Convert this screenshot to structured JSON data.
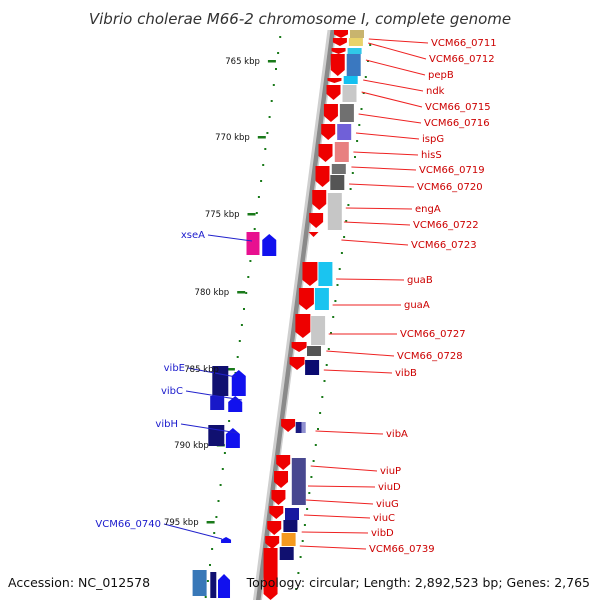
{
  "title": "Vibrio cholerae M66-2 chromosome I, complete genome",
  "footer": {
    "accession": "Accession: NC_012578",
    "topology": "Topology: circular; Length: 2,892,523 bp; Genes: 2,765"
  },
  "colors": {
    "backbone": "#8a8a8a",
    "forward_gene": "#ee0000",
    "reverse_gene": "#1111ee",
    "label_right": "#cc0000",
    "label_left": "#1a1acc",
    "leader_right": "#ee2222",
    "leader_left": "#2222cc",
    "tick": "#1a7a1a"
  },
  "scale_labels": [
    "765 kbp",
    "770 kbp",
    "775 kbp",
    "780 kbp",
    "785 kbp",
    "790 kbp",
    "795 kbp"
  ],
  "right_labels": [
    "VCM66_0711",
    "VCM66_0712",
    "pepB",
    "ndk",
    "VCM66_0715",
    "VCM66_0716",
    "ispG",
    "hisS",
    "VCM66_0719",
    "VCM66_0720",
    "engA",
    "VCM66_0722",
    "VCM66_0723",
    "guaB",
    "guaA",
    "VCM66_0727",
    "VCM66_0728",
    "vibB",
    "vibA",
    "viuP",
    "viuD",
    "viuG",
    "viuC",
    "vibD",
    "VCM66_0739"
  ],
  "left_labels": [
    "xseA",
    "vibE",
    "vibC",
    "vibH",
    "VCM66_0740"
  ]
}
